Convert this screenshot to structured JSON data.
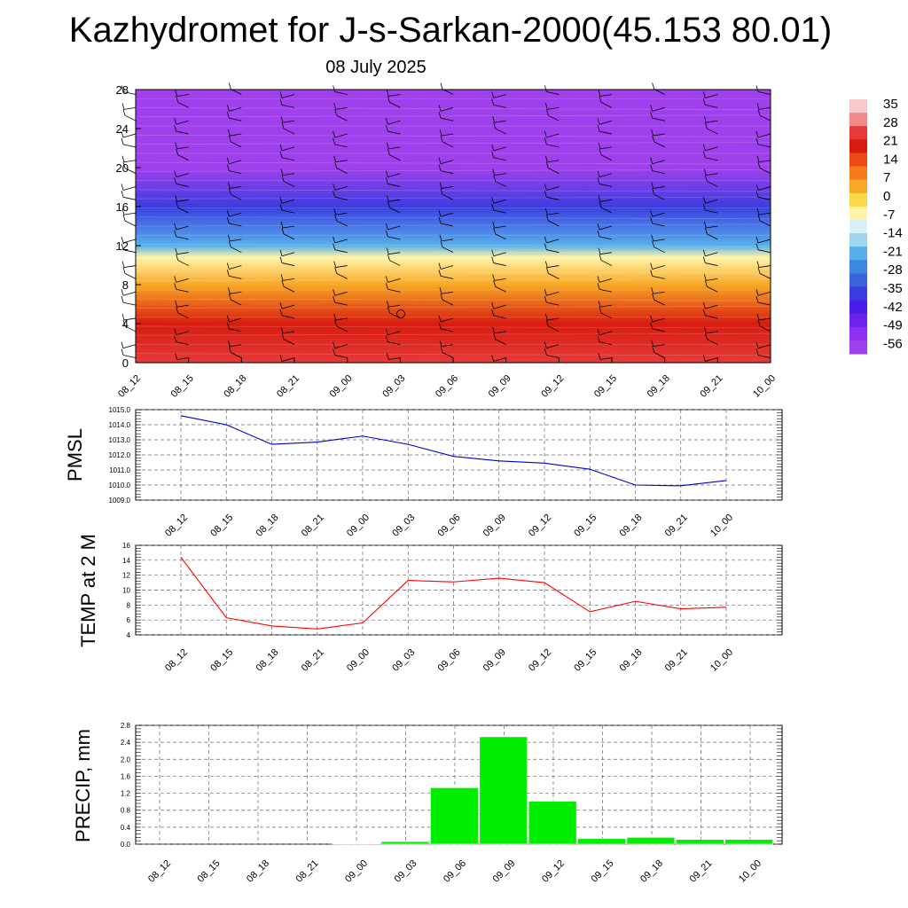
{
  "title": "Kazhydromet for J-s-Sarkan-2000(45.153 80.01)",
  "date": "08 July 2025",
  "time_labels": [
    "08_12",
    "08_15",
    "08_18",
    "08_21",
    "09_00",
    "09_03",
    "09_06",
    "09_09",
    "09_12",
    "09_15",
    "09_18",
    "09_21",
    "10_00"
  ],
  "colorbar": {
    "labels": [
      "35",
      "28",
      "21",
      "14",
      "7",
      "0",
      "-7",
      "-14",
      "-21",
      "-28",
      "-35",
      "-42",
      "-49",
      "-56"
    ],
    "colors": [
      "#f9c8c8",
      "#f08a8a",
      "#e63a3a",
      "#d81c10",
      "#ea4a14",
      "#f47a1a",
      "#f8a824",
      "#fcd848",
      "#fff4a8",
      "#d8f0f6",
      "#9ed6f2",
      "#58b0ea",
      "#3a88e2",
      "#3a62dc",
      "#3a3ee0",
      "#4a1ee8",
      "#6e22ec",
      "#8e30ee",
      "#a040ec"
    ]
  },
  "chart_data": [
    {
      "type": "heatmap",
      "title": "",
      "ylim": [
        0,
        28
      ],
      "yticks": [
        "0",
        "4",
        "8",
        "12",
        "16",
        "20",
        "24",
        "28"
      ],
      "x": [
        "08_12",
        "08_15",
        "08_18",
        "08_21",
        "09_00",
        "09_03",
        "09_06",
        "09_09",
        "09_12",
        "09_15",
        "09_18",
        "09_21",
        "10_00"
      ],
      "colorbar_ticks": [
        35,
        28,
        21,
        14,
        7,
        0,
        -7,
        -14,
        -21,
        -28,
        -35,
        -42,
        -49,
        -56
      ],
      "vertical_profile": [
        {
          "level": 0,
          "value": 24
        },
        {
          "level": 4,
          "value": 18
        },
        {
          "level": 8,
          "value": 6
        },
        {
          "level": 10.8,
          "value": -8
        },
        {
          "level": 12,
          "value": -22
        },
        {
          "level": 16,
          "value": -38
        },
        {
          "level": 20,
          "value": -58
        },
        {
          "level": 24,
          "value": -60
        },
        {
          "level": 28,
          "value": -58
        }
      ],
      "overlay": "wind barbs"
    },
    {
      "type": "line",
      "ylabel": "PMSL",
      "ylim": [
        1009.0,
        1015.0
      ],
      "yticks": [
        "1009.0",
        "1010.0",
        "1011.0",
        "1012.0",
        "1013.0",
        "1014.0",
        "1015.0"
      ],
      "x": [
        "08_12",
        "08_15",
        "08_18",
        "08_21",
        "09_00",
        "09_03",
        "09_06",
        "09_09",
        "09_12",
        "09_15",
        "09_18",
        "09_21",
        "10_00"
      ],
      "series": [
        {
          "color": "#0000cc",
          "values": [
            1014.6,
            1014.0,
            1012.7,
            1012.85,
            1013.25,
            1012.7,
            1011.9,
            1011.6,
            1011.45,
            1011.05,
            1010.0,
            1009.95,
            1010.3
          ]
        }
      ],
      "grid": true
    },
    {
      "type": "line",
      "ylabel": "TEMP at 2 M",
      "ylim": [
        4,
        16
      ],
      "yticks": [
        "4",
        "6",
        "8",
        "10",
        "12",
        "14",
        "16"
      ],
      "x": [
        "08_12",
        "08_15",
        "08_18",
        "08_21",
        "09_00",
        "09_03",
        "09_06",
        "09_09",
        "09_12",
        "09_15",
        "09_18",
        "09_21",
        "10_00"
      ],
      "series": [
        {
          "color": "#ff0000",
          "values": [
            14.4,
            6.3,
            5.2,
            4.8,
            5.6,
            11.3,
            11.1,
            11.6,
            11.0,
            7.1,
            8.5,
            7.5,
            7.7
          ]
        }
      ],
      "grid": true
    },
    {
      "type": "bar",
      "ylabel": "PRECIP, mm",
      "ylim": [
        0.0,
        2.8
      ],
      "yticks": [
        "0.0",
        "0.4",
        "0.8",
        "1.2",
        "1.6",
        "2.0",
        "2.4",
        "2.8"
      ],
      "categories": [
        "08_12",
        "08_15",
        "08_18",
        "08_21",
        "09_00",
        "09_03",
        "09_06",
        "09_09",
        "09_12",
        "09_15",
        "09_18",
        "09_21",
        "10_00"
      ],
      "values": [
        0.0,
        0.0,
        0.0,
        0.0,
        0.01,
        0.06,
        1.33,
        2.53,
        1.01,
        0.13,
        0.16,
        0.11,
        0.11
      ],
      "bar_color": "#00ee00",
      "grid": true
    }
  ]
}
